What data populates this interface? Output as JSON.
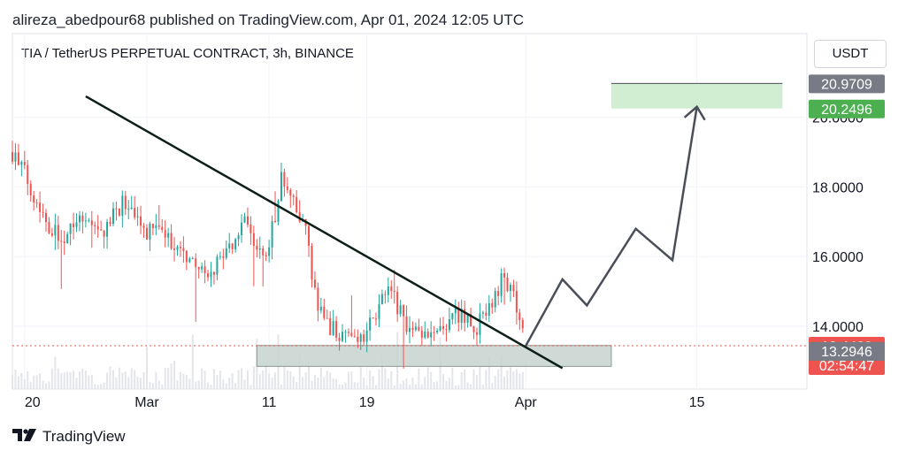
{
  "header": {
    "published_line": "alireza_abedpour68 published on TradingView.com, Apr 01, 2024 12:05 UTC",
    "symbol_line": "TIA / TetherUS PERPETUAL CONTRACT, 3h, BINANCE",
    "currency": "USDT"
  },
  "footer": {
    "brand": "TradingView",
    "logo_icon": "tradingview-logo-icon"
  },
  "colors": {
    "up": "#26a69a",
    "down": "#ef5350",
    "trendline": "#0b1f17",
    "projection": "#4a4e59",
    "support_zone": "#c7d3cf",
    "target_zone": "#cdeccd",
    "last_price_label": "#ef5350",
    "green_label": "#4caf50",
    "gray_label": "#787b86",
    "volume": "#e3e5ea"
  },
  "chart_data": {
    "type": "candlestick",
    "title": "TIA / TetherUS PERPETUAL CONTRACT, 3h, BINANCE",
    "x_tick_labels": [
      "20",
      "Mar",
      "11",
      "19",
      "Apr",
      "15"
    ],
    "y_tick_labels": [
      "14.0000",
      "16.0000",
      "18.0000",
      "20.0000"
    ],
    "ylim": [
      12.2,
      22.4
    ],
    "price_labels": [
      {
        "text": "20.9709",
        "value": 20.9709,
        "kind": "gray"
      },
      {
        "text": "20.2496",
        "value": 20.2496,
        "kind": "green"
      },
      {
        "text": "13.4429",
        "value": 13.4429,
        "kind": "last"
      },
      {
        "text": "02:54:47",
        "kind": "countdown"
      },
      {
        "text": "13.2947",
        "value": 13.2947,
        "kind": "green"
      },
      {
        "text": "13.2946",
        "value": 13.2946,
        "kind": "gray"
      }
    ],
    "last_price": 13.4429,
    "price_path": [
      [
        "2024-02-19",
        19.0
      ],
      [
        "2024-02-20",
        18.4
      ],
      [
        "2024-02-21",
        17.6
      ],
      [
        "2024-02-22",
        16.9
      ],
      [
        "2024-02-23",
        16.5
      ],
      [
        "2024-02-24",
        17.1
      ],
      [
        "2024-02-25",
        17.2
      ],
      [
        "2024-02-26",
        16.6
      ],
      [
        "2024-02-27",
        17.0
      ],
      [
        "2024-02-28",
        17.6
      ],
      [
        "2024-02-29",
        17.0
      ],
      [
        "2024-03-01",
        16.7
      ],
      [
        "2024-03-02",
        16.8
      ],
      [
        "2024-03-03",
        16.4
      ],
      [
        "2024-03-04",
        16.1
      ],
      [
        "2024-03-05",
        15.8
      ],
      [
        "2024-03-06",
        15.3
      ],
      [
        "2024-03-07",
        16.0
      ],
      [
        "2024-03-08",
        16.4
      ],
      [
        "2024-03-09",
        16.9
      ],
      [
        "2024-03-10",
        16.1
      ],
      [
        "2024-03-11",
        16.3
      ],
      [
        "2024-03-12",
        18.2
      ],
      [
        "2024-03-13",
        17.5
      ],
      [
        "2024-03-14",
        16.7
      ],
      [
        "2024-03-15",
        14.4
      ],
      [
        "2024-03-16",
        14.0
      ],
      [
        "2024-03-17",
        13.8
      ],
      [
        "2024-03-18",
        13.6
      ],
      [
        "2024-03-19",
        13.8
      ],
      [
        "2024-03-20",
        14.6
      ],
      [
        "2024-03-21",
        15.0
      ],
      [
        "2024-03-22",
        14.2
      ],
      [
        "2024-03-23",
        13.8
      ],
      [
        "2024-03-24",
        13.6
      ],
      [
        "2024-03-25",
        13.8
      ],
      [
        "2024-03-26",
        14.5
      ],
      [
        "2024-03-27",
        14.2
      ],
      [
        "2024-03-28",
        14.0
      ],
      [
        "2024-03-29",
        14.4
      ],
      [
        "2024-03-30",
        15.3
      ],
      [
        "2024-03-31",
        14.8
      ],
      [
        "2024-04-01",
        13.44
      ]
    ],
    "annotations": {
      "trendline": {
        "from": [
          "2024-02-25",
          20.6
        ],
        "to": [
          "2024-04-04",
          12.8
        ]
      },
      "support_zone": {
        "from": "2024-03-10",
        "to": "2024-04-08",
        "low": 12.85,
        "high": 13.45
      },
      "target_zone": {
        "from": "2024-04-08",
        "to": "2024-04-22",
        "low": 20.2496,
        "high": 20.9709
      },
      "projected_path": [
        [
          "2024-04-01",
          13.44
        ],
        [
          "2024-04-04",
          15.35
        ],
        [
          "2024-04-06",
          14.6
        ],
        [
          "2024-04-10",
          16.8
        ],
        [
          "2024-04-13",
          15.9
        ],
        [
          "2024-04-15",
          20.3
        ],
        [
          "2024-04-15",
          19.9
        ]
      ]
    }
  }
}
